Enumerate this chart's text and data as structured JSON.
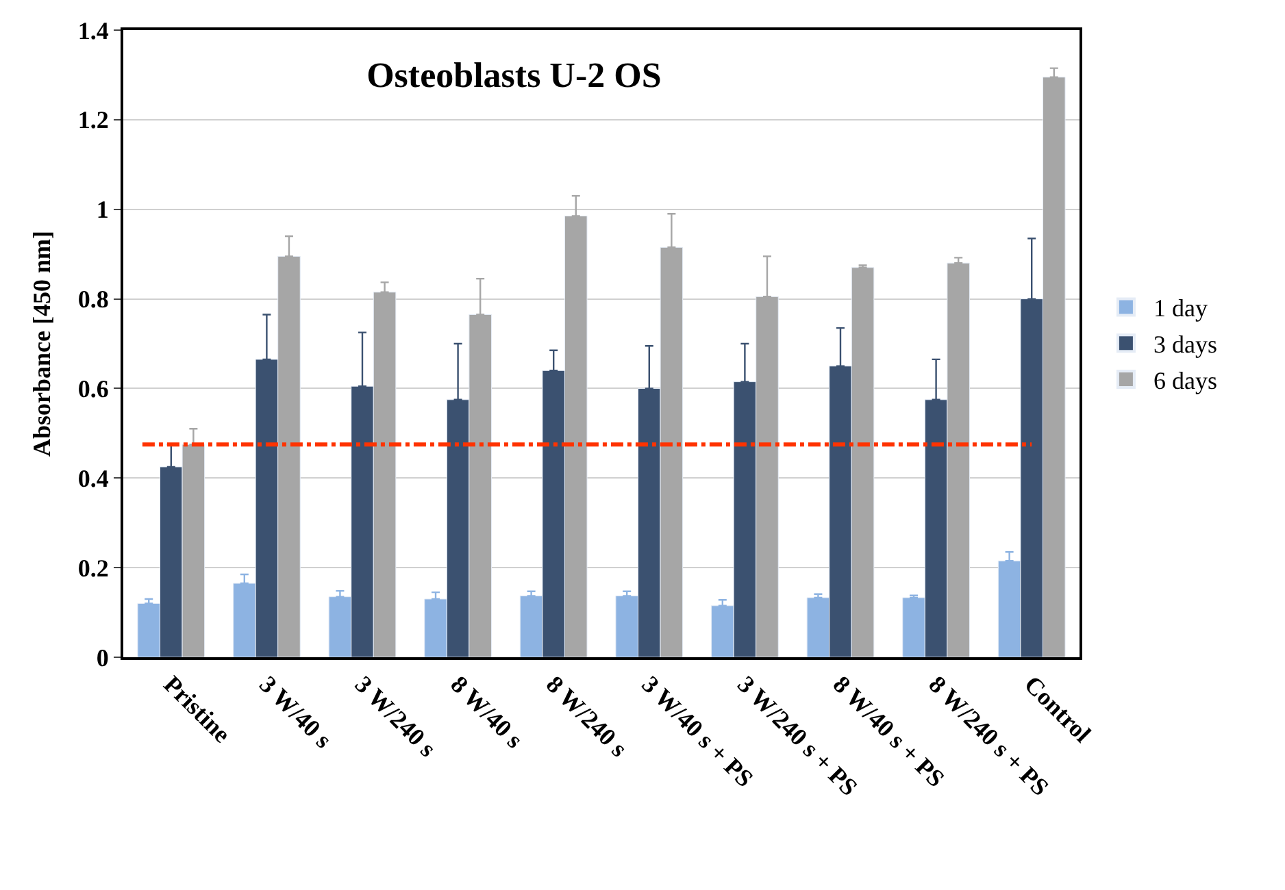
{
  "chart_data": {
    "type": "bar",
    "title": "Osteoblasts U-2 OS",
    "ylabel": "Absorbance [450 nm]",
    "categories": [
      "Pristine",
      "3 W/40 s",
      "3 W/240 s",
      "8 W/40 s",
      "8 W/240 s",
      "3 W/40 s + PS",
      "3 W/240 s + PS",
      "8 W/40 s + PS",
      "8 W/240 s + PS",
      "Control"
    ],
    "series": [
      {
        "name": "1 day",
        "color": "#8db3e2",
        "values": [
          0.12,
          0.165,
          0.135,
          0.13,
          0.137,
          0.137,
          0.115,
          0.133,
          0.133,
          0.215
        ],
        "errors": [
          [
            0.12,
            0.13
          ],
          [
            0.165,
            0.185
          ],
          [
            0.135,
            0.148
          ],
          [
            0.13,
            0.145
          ],
          [
            0.137,
            0.147
          ],
          [
            0.137,
            0.147
          ],
          [
            0.115,
            0.128
          ],
          [
            0.133,
            0.141
          ],
          [
            0.133,
            0.138
          ],
          [
            0.215,
            0.235
          ]
        ]
      },
      {
        "name": "3 days",
        "color": "#3b5170",
        "values": [
          0.425,
          0.665,
          0.605,
          0.575,
          0.64,
          0.6,
          0.615,
          0.65,
          0.575,
          0.8
        ],
        "errors": [
          [
            0.425,
            0.475
          ],
          [
            0.665,
            0.765
          ],
          [
            0.605,
            0.725
          ],
          [
            0.575,
            0.7
          ],
          [
            0.64,
            0.685
          ],
          [
            0.6,
            0.695
          ],
          [
            0.615,
            0.7
          ],
          [
            0.65,
            0.735
          ],
          [
            0.575,
            0.665
          ],
          [
            0.8,
            0.935
          ]
        ]
      },
      {
        "name": "6 days",
        "color": "#a6a6a6",
        "values": [
          0.475,
          0.895,
          0.815,
          0.765,
          0.985,
          0.915,
          0.805,
          0.87,
          0.88,
          1.295
        ],
        "errors": [
          [
            0.475,
            0.51
          ],
          [
            0.895,
            0.94
          ],
          [
            0.815,
            0.837
          ],
          [
            0.765,
            0.845
          ],
          [
            0.985,
            1.03
          ],
          [
            0.915,
            0.99
          ],
          [
            0.805,
            0.895
          ],
          [
            0.87,
            0.875
          ],
          [
            0.88,
            0.892
          ],
          [
            1.295,
            1.315
          ]
        ]
      }
    ],
    "ylim": [
      0,
      1.4
    ],
    "yticks": [
      0,
      0.2,
      0.4,
      0.6,
      0.8,
      1,
      1.2,
      1.4
    ],
    "grid": "y",
    "legend": "right",
    "ref_lines": [
      {
        "axis": "y",
        "value": 0.475,
        "color": "#ff3300",
        "line_style": "dashdot"
      }
    ]
  }
}
